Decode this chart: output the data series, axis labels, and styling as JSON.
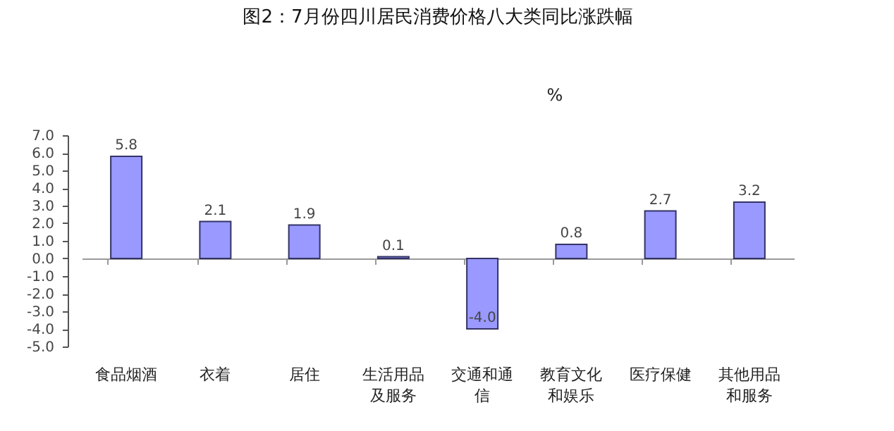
{
  "chart_data": {
    "type": "bar",
    "title": "图2：7月份四川居民消费价格八大类同比涨跌幅",
    "ylabel": "%",
    "categories": [
      "食品烟酒",
      "衣着",
      "居住",
      "生活用品及服务",
      "交通和通信",
      "教育文化和娱乐",
      "医疗保健",
      "其他用品和服务"
    ],
    "values": [
      5.8,
      2.1,
      1.9,
      0.1,
      -4.0,
      0.8,
      2.7,
      3.2
    ],
    "color": "#9999ff",
    "ylim": [
      -5,
      7
    ],
    "yticks": [
      {
        "value": -5,
        "label": "-5.0"
      },
      {
        "value": -4,
        "label": "-4.0"
      },
      {
        "value": -3,
        "label": "-3.0"
      },
      {
        "value": -2,
        "label": "-2.0"
      },
      {
        "value": -1,
        "label": "-1.0"
      },
      {
        "value": 0,
        "label": "0.0"
      },
      {
        "value": 1,
        "label": "1.0"
      },
      {
        "value": 2,
        "label": "2.0"
      },
      {
        "value": 3,
        "label": "3.0"
      },
      {
        "value": 4,
        "label": "4.0"
      },
      {
        "value": 5,
        "label": "5.0"
      },
      {
        "value": 6,
        "label": "6.0"
      },
      {
        "value": 7,
        "label": "7.0"
      }
    ],
    "value_labels": [
      "5.8",
      "2.1",
      "1.9",
      "0.1",
      "-4.0",
      "0.8",
      "2.7",
      "3.2"
    ]
  }
}
